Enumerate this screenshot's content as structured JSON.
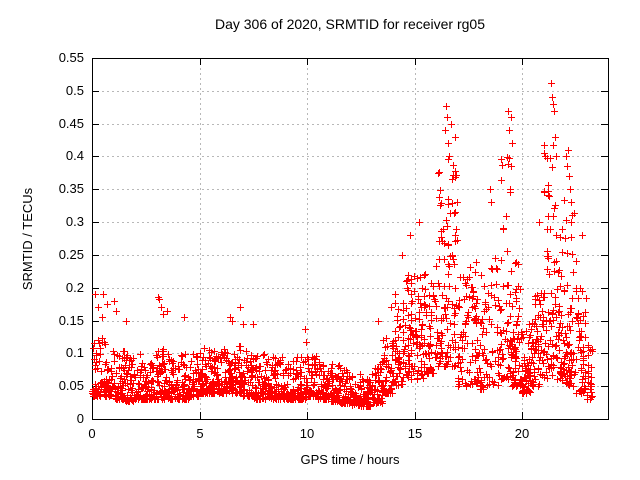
{
  "chart_data": {
    "type": "scatter",
    "title": "Day 306 of 2020, SRMTID for receiver rg05",
    "xlabel": "GPS time / hours",
    "ylabel": "SRMTID / TECUs",
    "xlim": [
      0,
      24
    ],
    "ylim": [
      0,
      0.55
    ],
    "x_tick_values": [
      0,
      5,
      10,
      15,
      20
    ],
    "x_tick_labels": [
      "0",
      "5",
      "10",
      "15",
      "20"
    ],
    "y_tick_values": [
      0,
      0.05,
      0.1,
      0.15,
      0.2,
      0.25,
      0.3,
      0.35,
      0.4,
      0.45,
      0.5,
      0.55
    ],
    "y_tick_labels": [
      "0",
      "0.05",
      "0.1",
      "0.15",
      "0.2",
      "0.25",
      "0.3",
      "0.35",
      "0.4",
      "0.45",
      "0.5",
      "0.55"
    ],
    "grid": {
      "on": true,
      "color": "#b8b8b8",
      "dash": "2,3"
    },
    "frame_color": "#000000",
    "background_color": "#ffffff",
    "text_color": "#000000",
    "marker": {
      "shape": "plus",
      "color": "#ff0000",
      "size": 7
    },
    "legend": "none",
    "data_end_hour": 23.25,
    "bins_columns": [
      "x_start",
      "x_end",
      "count",
      "y_min",
      "y_max"
    ],
    "density_bins": [
      [
        0,
        0.5,
        50,
        0.035,
        0.13
      ],
      [
        0.5,
        1,
        50,
        0.035,
        0.12
      ],
      [
        1,
        1.5,
        50,
        0.03,
        0.11
      ],
      [
        1.5,
        2,
        50,
        0.028,
        0.1
      ],
      [
        2,
        2.5,
        50,
        0.03,
        0.1
      ],
      [
        2.5,
        3,
        50,
        0.03,
        0.1
      ],
      [
        3,
        3.5,
        50,
        0.03,
        0.11
      ],
      [
        3.5,
        4,
        50,
        0.03,
        0.105
      ],
      [
        4,
        4.5,
        50,
        0.03,
        0.1
      ],
      [
        4.5,
        5,
        50,
        0.035,
        0.1
      ],
      [
        5,
        5.5,
        50,
        0.04,
        0.11
      ],
      [
        5.5,
        6,
        50,
        0.04,
        0.105
      ],
      [
        6,
        6.5,
        50,
        0.04,
        0.11
      ],
      [
        6.5,
        7,
        50,
        0.04,
        0.115
      ],
      [
        7,
        7.5,
        50,
        0.035,
        0.105
      ],
      [
        7.5,
        8,
        50,
        0.03,
        0.1
      ],
      [
        8,
        8.5,
        50,
        0.03,
        0.1
      ],
      [
        8.5,
        9,
        50,
        0.03,
        0.095
      ],
      [
        9,
        9.5,
        50,
        0.03,
        0.09
      ],
      [
        9.5,
        10,
        50,
        0.03,
        0.095
      ],
      [
        10,
        10.5,
        50,
        0.035,
        0.1
      ],
      [
        10.5,
        11,
        50,
        0.03,
        0.09
      ],
      [
        11,
        11.5,
        50,
        0.027,
        0.085
      ],
      [
        11.5,
        12,
        50,
        0.025,
        0.08
      ],
      [
        12,
        12.5,
        50,
        0.022,
        0.07
      ],
      [
        12.5,
        13,
        55,
        0.02,
        0.062
      ],
      [
        13,
        13.5,
        50,
        0.025,
        0.085
      ],
      [
        13.5,
        14,
        50,
        0.04,
        0.13
      ],
      [
        14,
        14.5,
        50,
        0.05,
        0.18
      ],
      [
        14.5,
        15,
        50,
        0.06,
        0.22
      ],
      [
        15,
        15.5,
        50,
        0.06,
        0.24
      ],
      [
        15.5,
        16,
        45,
        0.07,
        0.21
      ],
      [
        16,
        16.5,
        55,
        0.08,
        0.38
      ],
      [
        16.5,
        17,
        55,
        0.08,
        0.4
      ],
      [
        17,
        17.5,
        40,
        0.05,
        0.22
      ],
      [
        17.5,
        18,
        45,
        0.05,
        0.24
      ],
      [
        18,
        18.5,
        40,
        0.045,
        0.22
      ],
      [
        18.5,
        19,
        35,
        0.05,
        0.26
      ],
      [
        19,
        19.5,
        55,
        0.06,
        0.4
      ],
      [
        19.5,
        20,
        60,
        0.05,
        0.24
      ],
      [
        20,
        20.5,
        60,
        0.04,
        0.15
      ],
      [
        20.5,
        21,
        55,
        0.05,
        0.2
      ],
      [
        21,
        21.5,
        60,
        0.06,
        0.42
      ],
      [
        21.5,
        22,
        55,
        0.06,
        0.35
      ],
      [
        22,
        22.5,
        55,
        0.05,
        0.32
      ],
      [
        22.5,
        23,
        50,
        0.04,
        0.2
      ],
      [
        23,
        23.25,
        25,
        0.03,
        0.12
      ]
    ],
    "peak_points": [
      [
        0.15,
        0.19
      ],
      [
        0.3,
        0.17
      ],
      [
        0.45,
        0.155
      ],
      [
        0.5,
        0.19
      ],
      [
        0.7,
        0.175
      ],
      [
        1.0,
        0.18
      ],
      [
        1.1,
        0.165
      ],
      [
        1.6,
        0.15
      ],
      [
        3.05,
        0.186
      ],
      [
        3.1,
        0.183
      ],
      [
        3.2,
        0.17
      ],
      [
        3.3,
        0.16
      ],
      [
        3.5,
        0.165
      ],
      [
        4.3,
        0.155
      ],
      [
        6.4,
        0.155
      ],
      [
        6.5,
        0.15
      ],
      [
        6.9,
        0.17
      ],
      [
        7.0,
        0.145
      ],
      [
        7.5,
        0.145
      ],
      [
        9.9,
        0.137
      ],
      [
        9.95,
        0.117
      ],
      [
        13.3,
        0.15
      ],
      [
        13.9,
        0.17
      ],
      [
        14.1,
        0.19
      ],
      [
        14.4,
        0.25
      ],
      [
        14.8,
        0.28
      ],
      [
        15.2,
        0.3
      ],
      [
        16.4,
        0.44
      ],
      [
        16.45,
        0.477
      ],
      [
        16.5,
        0.46
      ],
      [
        16.55,
        0.42
      ],
      [
        16.6,
        0.4
      ],
      [
        16.7,
        0.45
      ],
      [
        16.9,
        0.43
      ],
      [
        18.5,
        0.35
      ],
      [
        18.55,
        0.33
      ],
      [
        19.35,
        0.47
      ],
      [
        19.4,
        0.44
      ],
      [
        19.5,
        0.46
      ],
      [
        19.55,
        0.42
      ],
      [
        20.8,
        0.3
      ],
      [
        21.35,
        0.512
      ],
      [
        21.4,
        0.49
      ],
      [
        21.45,
        0.48
      ],
      [
        21.5,
        0.47
      ],
      [
        21.55,
        0.43
      ],
      [
        21.6,
        0.4
      ],
      [
        22.05,
        0.4
      ],
      [
        22.1,
        0.385
      ],
      [
        22.15,
        0.41
      ],
      [
        22.2,
        0.37
      ],
      [
        22.25,
        0.35
      ],
      [
        22.3,
        0.33
      ],
      [
        22.8,
        0.28
      ]
    ]
  }
}
